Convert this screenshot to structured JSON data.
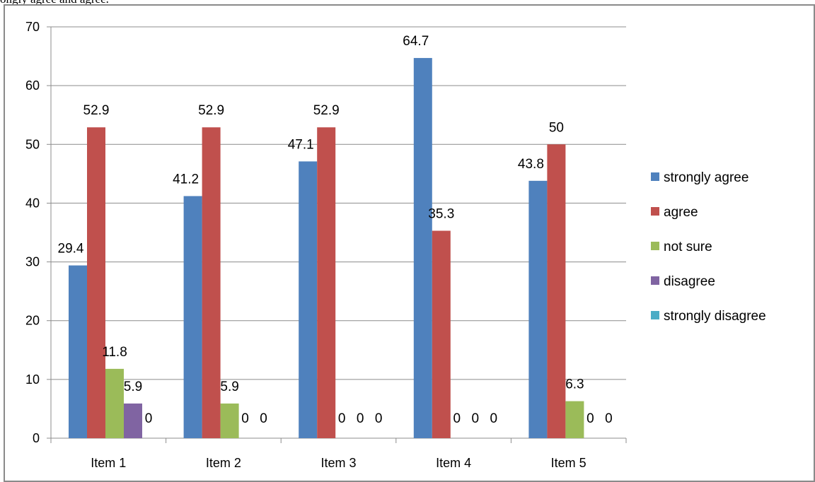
{
  "page": {
    "top_text": "ongly agree and agree."
  },
  "chart_data": {
    "type": "bar",
    "categories": [
      "Item 1",
      "Item 2",
      "Item 3",
      "Item 4",
      "Item 5"
    ],
    "series": [
      {
        "name": "strongly agree",
        "color": "#4F81BD",
        "values": [
          29.4,
          41.2,
          47.1,
          64.7,
          43.8
        ]
      },
      {
        "name": "agree",
        "color": "#C0504D",
        "values": [
          52.9,
          52.9,
          52.9,
          35.3,
          50
        ]
      },
      {
        "name": "not sure",
        "color": "#9BBB59",
        "values": [
          11.8,
          5.9,
          0,
          0,
          6.3
        ]
      },
      {
        "name": "disagree",
        "color": "#8064A2",
        "values": [
          5.9,
          0,
          0,
          0,
          0
        ]
      },
      {
        "name": "strongly disagree",
        "color": "#4BACC6",
        "values": [
          null,
          null,
          null,
          null,
          null
        ]
      }
    ],
    "data_labels": [
      [
        "29.4",
        "52.9",
        "11.8",
        "5.9",
        "0"
      ],
      [
        "41.2",
        "52.9",
        "5.9",
        "0",
        "0"
      ],
      [
        "47.1",
        "52.9",
        "0",
        "0",
        "0"
      ],
      [
        "64.7",
        "35.3",
        "0",
        "0",
        "0"
      ],
      [
        "43.8",
        "50",
        "6.3",
        "0",
        "0"
      ]
    ],
    "title": "",
    "xlabel": "",
    "ylabel": "",
    "ylim": [
      0,
      70
    ],
    "yticks": [
      0,
      10,
      20,
      30,
      40,
      50,
      60,
      70
    ],
    "grid": true,
    "legend_position": "right"
  }
}
